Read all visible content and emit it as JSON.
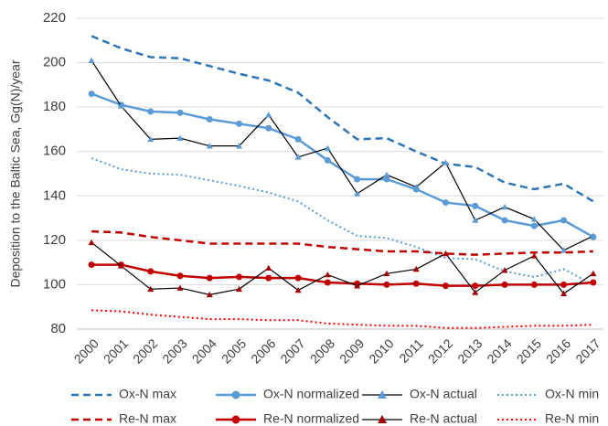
{
  "chart_data": {
    "type": "line",
    "y_label": "Deposition to the Baltic Sea, Gg(N)/year",
    "categories": [
      "2000",
      "2001",
      "2002",
      "2003",
      "2004",
      "2005",
      "2006",
      "2007",
      "2008",
      "2009",
      "2010",
      "2011",
      "2012",
      "2013",
      "2014",
      "2015",
      "2016",
      "2017"
    ],
    "ylim": [
      80,
      220
    ],
    "yticks": [
      80,
      100,
      120,
      140,
      160,
      180,
      200,
      220
    ],
    "grid": true,
    "legend": "bottom",
    "series": [
      {
        "name": "Ox-N max",
        "color": "#2e75b6",
        "dash": "dash",
        "values": [
          212,
          206.5,
          202.5,
          202,
          198.5,
          195,
          192,
          186.5,
          175.5,
          165.5,
          166,
          160,
          154.5,
          153,
          146,
          143,
          145.5,
          137.5
        ]
      },
      {
        "name": "Ox-N normalized",
        "color": "#5b9bd5",
        "dash": "solid",
        "marker": "circle",
        "marker_color": "#5b9bd5",
        "values": [
          186,
          181,
          178,
          177.5,
          174.5,
          172.5,
          170.5,
          165.5,
          156,
          147.5,
          147.5,
          143,
          137,
          135.5,
          129,
          126.5,
          129,
          121.5
        ]
      },
      {
        "name": "Ox-N actual",
        "color": "#000000",
        "dash": "thin",
        "marker": "triangle",
        "marker_color": "#5b9bd5",
        "values": [
          201,
          180.5,
          165.5,
          166,
          162.5,
          162.5,
          176.5,
          157.5,
          161.5,
          141,
          149.5,
          144,
          155,
          129,
          135,
          129.5,
          115.5,
          122
        ]
      },
      {
        "name": "Ox-N min",
        "color": "#5b9bd5",
        "dash": "dot",
        "values": [
          157,
          152,
          150,
          149.5,
          147,
          144.5,
          141.5,
          137.5,
          129,
          122,
          121,
          117,
          112,
          111.5,
          106,
          103.5,
          107,
          100
        ]
      },
      {
        "name": "Re-N max",
        "color": "#c00000",
        "dash": "dash",
        "values": [
          124,
          123.5,
          121.5,
          120,
          118.5,
          118.5,
          118.5,
          118.5,
          117,
          116,
          115,
          115,
          114,
          113.5,
          114,
          114.5,
          114.5,
          115
        ]
      },
      {
        "name": "Re-N normalized",
        "color": "#c00000",
        "dash": "solid",
        "marker": "circle",
        "marker_color": "#c00000",
        "values": [
          109,
          109,
          106,
          104,
          103,
          103.5,
          103,
          103,
          101,
          100.5,
          100,
          100.5,
          99.5,
          99.5,
          100,
          100,
          100,
          101
        ]
      },
      {
        "name": "Re-N actual",
        "color": "#000000",
        "dash": "thin",
        "marker": "triangle",
        "marker_color": "#a00000",
        "values": [
          119,
          108.5,
          98,
          98.5,
          95.5,
          98,
          107.5,
          97.5,
          104.5,
          99.5,
          105,
          107,
          114,
          96.5,
          106.5,
          113,
          96,
          105
        ]
      },
      {
        "name": "Re-N min",
        "color": "#ff0000",
        "dash": "dot",
        "values": [
          88.5,
          88,
          86.5,
          85.5,
          84.5,
          84.5,
          84,
          84,
          82.5,
          82,
          81.5,
          81.5,
          80.5,
          80.5,
          81,
          81.5,
          81.5,
          82
        ]
      }
    ]
  }
}
